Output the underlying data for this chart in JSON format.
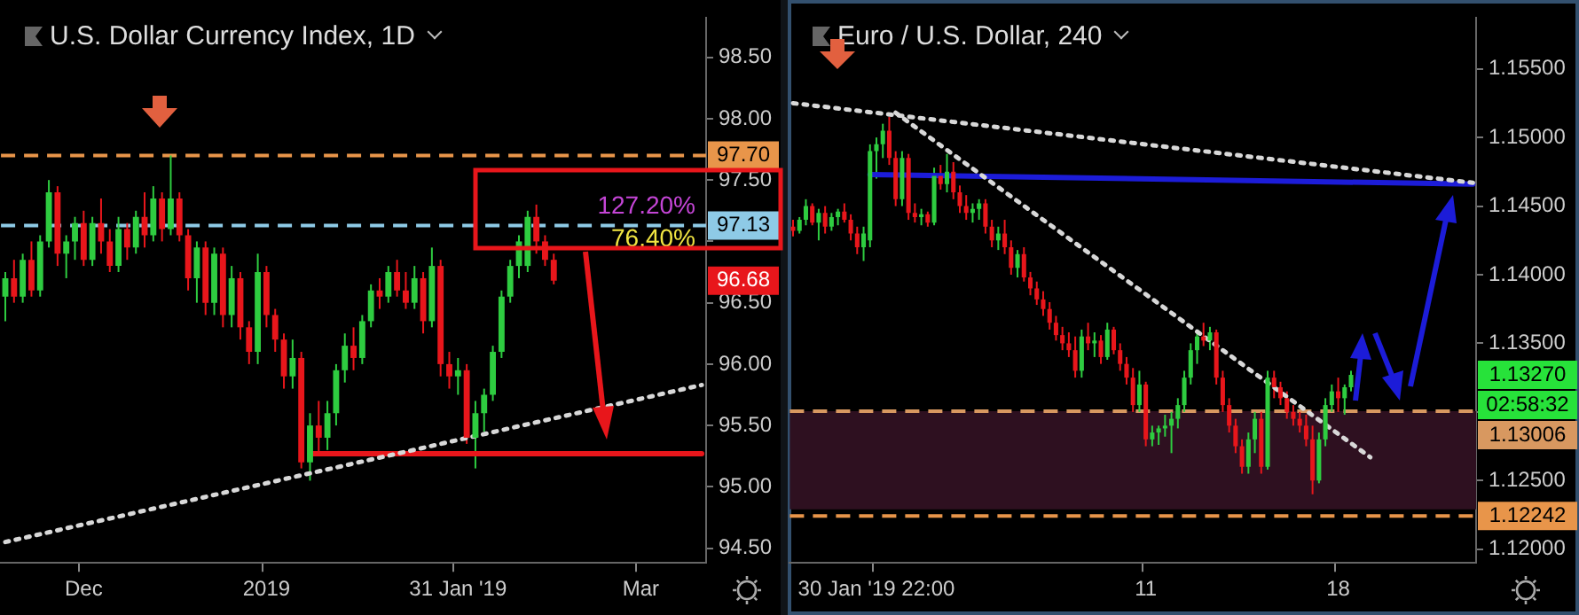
{
  "chart_data": [
    {
      "type": "candlestick",
      "title": "U.S. Dollar Currency Index, 1D",
      "grid": false,
      "legend": false,
      "categories": [
        null,
        null,
        null,
        null,
        null,
        null,
        null,
        null,
        null,
        "Dec",
        null,
        null,
        null,
        null,
        null,
        null,
        null,
        null,
        null,
        null,
        null,
        null,
        null,
        null,
        null,
        null,
        null,
        null,
        null,
        null,
        "2019",
        null,
        null,
        null,
        null,
        null,
        null,
        null,
        null,
        null,
        null,
        null,
        null,
        null,
        null,
        null,
        null,
        null,
        null,
        null,
        null,
        null,
        "31 Jan '19",
        null,
        null,
        null,
        null,
        null,
        null,
        null,
        null,
        null,
        null,
        null,
        null,
        null,
        null,
        null,
        null,
        null,
        null,
        null,
        null,
        "Mar",
        null,
        null,
        null,
        null,
        null,
        null,
        null
      ],
      "ohlc": [
        [
          96.55,
          96.75,
          96.35,
          96.7
        ],
        [
          96.7,
          96.85,
          96.5,
          96.55
        ],
        [
          96.55,
          96.9,
          96.5,
          96.85
        ],
        [
          96.85,
          97.0,
          96.55,
          96.6
        ],
        [
          96.6,
          97.05,
          96.55,
          97.0
        ],
        [
          97.0,
          97.5,
          96.95,
          97.4
        ],
        [
          97.4,
          97.45,
          96.8,
          96.9
        ],
        [
          96.9,
          97.05,
          96.7,
          97.0
        ],
        [
          97.0,
          97.2,
          96.85,
          97.15
        ],
        [
          97.15,
          97.25,
          96.8,
          96.85
        ],
        [
          96.85,
          97.2,
          96.8,
          97.15
        ],
        [
          97.15,
          97.35,
          96.9,
          97.0
        ],
        [
          97.0,
          97.1,
          96.75,
          96.8
        ],
        [
          96.8,
          97.2,
          96.75,
          97.1
        ],
        [
          97.1,
          97.15,
          96.85,
          96.95
        ],
        [
          96.95,
          97.25,
          96.9,
          97.2
        ],
        [
          97.2,
          97.4,
          96.95,
          97.05
        ],
        [
          97.05,
          97.45,
          97.0,
          97.35
        ],
        [
          97.35,
          97.4,
          97.0,
          97.1
        ],
        [
          97.1,
          97.7,
          97.05,
          97.35
        ],
        [
          97.35,
          97.4,
          97.0,
          97.05
        ],
        [
          97.05,
          97.1,
          96.6,
          96.7
        ],
        [
          96.7,
          97.0,
          96.5,
          96.95
        ],
        [
          96.95,
          97.0,
          96.4,
          96.5
        ],
        [
          96.5,
          96.95,
          96.4,
          96.9
        ],
        [
          96.9,
          96.95,
          96.3,
          96.4
        ],
        [
          96.4,
          96.8,
          96.3,
          96.7
        ],
        [
          96.7,
          96.75,
          96.2,
          96.3
        ],
        [
          96.3,
          96.35,
          96.0,
          96.1
        ],
        [
          96.1,
          96.9,
          96.0,
          96.75
        ],
        [
          96.75,
          96.8,
          96.3,
          96.4
        ],
        [
          96.4,
          96.45,
          96.1,
          96.2
        ],
        [
          96.2,
          96.25,
          95.8,
          95.9
        ],
        [
          95.9,
          96.2,
          95.8,
          96.05
        ],
        [
          96.05,
          96.1,
          95.15,
          95.2
        ],
        [
          95.2,
          95.6,
          95.05,
          95.5
        ],
        [
          95.5,
          95.7,
          95.25,
          95.4
        ],
        [
          95.4,
          95.7,
          95.3,
          95.6
        ],
        [
          95.6,
          96.0,
          95.5,
          95.95
        ],
        [
          95.95,
          96.25,
          95.85,
          96.15
        ],
        [
          96.15,
          96.3,
          95.95,
          96.05
        ],
        [
          96.05,
          96.4,
          96.0,
          96.35
        ],
        [
          96.35,
          96.65,
          96.3,
          96.6
        ],
        [
          96.6,
          96.7,
          96.45,
          96.55
        ],
        [
          96.55,
          96.8,
          96.5,
          96.75
        ],
        [
          96.75,
          96.85,
          96.55,
          96.6
        ],
        [
          96.6,
          96.75,
          96.45,
          96.5
        ],
        [
          96.5,
          96.8,
          96.45,
          96.7
        ],
        [
          96.7,
          96.75,
          96.25,
          96.35
        ],
        [
          96.35,
          96.95,
          96.3,
          96.8
        ],
        [
          96.8,
          96.85,
          95.9,
          96.0
        ],
        [
          96.0,
          96.1,
          95.8,
          95.9
        ],
        [
          95.9,
          96.05,
          95.75,
          95.95
        ],
        [
          95.95,
          96.0,
          95.35,
          95.4
        ],
        [
          95.4,
          95.7,
          95.15,
          95.6
        ],
        [
          95.6,
          95.8,
          95.45,
          95.75
        ],
        [
          95.75,
          96.15,
          95.7,
          96.1
        ],
        [
          96.1,
          96.6,
          96.05,
          96.55
        ],
        [
          96.55,
          96.85,
          96.5,
          96.8
        ],
        [
          96.8,
          97.05,
          96.7,
          97.0
        ],
        [
          96.8,
          97.25,
          96.75,
          97.2
        ],
        [
          97.2,
          97.3,
          96.9,
          97.0
        ],
        [
          97.0,
          97.05,
          96.8,
          96.85
        ],
        [
          96.85,
          96.9,
          96.65,
          96.68
        ],
        null,
        null,
        null,
        null,
        null,
        null,
        null,
        null,
        null,
        null,
        null,
        null,
        null,
        null,
        null,
        null,
        null
      ],
      "series": [
        {
          "type": "line",
          "color": "#d8d8d8",
          "line_style": "dotted",
          "values": [
            94.55,
            null,
            null,
            null,
            null,
            null,
            null,
            null,
            null,
            null,
            null,
            null,
            null,
            null,
            null,
            null,
            null,
            null,
            null,
            null,
            null,
            null,
            null,
            null,
            null,
            null,
            null,
            null,
            null,
            null,
            null,
            null,
            null,
            null,
            null,
            null,
            null,
            null,
            null,
            null,
            null,
            null,
            null,
            null,
            null,
            null,
            null,
            null,
            null,
            null,
            null,
            null,
            null,
            null,
            null,
            null,
            null,
            null,
            null,
            null,
            null,
            null,
            null,
            null,
            null,
            null,
            null,
            null,
            null,
            null,
            null,
            null,
            null,
            null,
            null,
            null,
            null,
            null,
            null,
            null,
            95.83
          ]
        },
        {
          "type": "line",
          "color": "#e8161b",
          "line_style": "solid",
          "values": [
            null,
            null,
            null,
            null,
            null,
            null,
            null,
            null,
            null,
            null,
            null,
            null,
            null,
            null,
            null,
            null,
            null,
            null,
            null,
            null,
            null,
            null,
            null,
            null,
            null,
            null,
            null,
            null,
            null,
            null,
            null,
            null,
            null,
            null,
            null,
            95.27,
            null,
            null,
            null,
            null,
            null,
            null,
            null,
            null,
            null,
            null,
            null,
            null,
            null,
            null,
            null,
            null,
            null,
            null,
            null,
            null,
            null,
            null,
            null,
            null,
            null,
            null,
            null,
            null,
            null,
            null,
            null,
            null,
            null,
            null,
            null,
            null,
            null,
            null,
            null,
            null,
            null,
            null,
            null,
            null,
            95.27
          ]
        }
      ],
      "ylim": [
        94.38,
        98.82
      ],
      "yticks": [
        {
          "value": 94.5,
          "label": "94.50"
        },
        {
          "value": 95,
          "label": "95.00"
        },
        {
          "value": 95.5,
          "label": "95.50"
        },
        {
          "value": 96,
          "label": "96.00"
        },
        {
          "value": 96.5,
          "label": "96.50"
        },
        {
          "value": 97,
          "label": null
        },
        {
          "value": 97.5,
          "label": "97.50"
        },
        {
          "value": 98,
          "label": "98.00"
        },
        {
          "value": 98.5,
          "label": "98.50"
        }
      ],
      "ref_lines": [
        {
          "axis": "y",
          "value": 97.7,
          "label": "97.70",
          "color": "#e8954a",
          "line_style": "dashed"
        },
        {
          "axis": "y",
          "value": 97.13,
          "label": "97.13",
          "color": "#8ecae6",
          "line_style": "dashed"
        }
      ],
      "annotations": [
        {
          "text": "127.20%",
          "y": 97.17
        },
        {
          "text": "76.40%",
          "y": 97.13
        },
        {
          "text": "96.68",
          "y": 96.68
        }
      ]
    },
    {
      "type": "candlestick",
      "title": "Euro / U.S. Dollar, 240",
      "grid": false,
      "legend": false,
      "categories": [
        null,
        null,
        null,
        null,
        null,
        null,
        null,
        null,
        null,
        null,
        null,
        null,
        null,
        "30 Jan '19 22:00",
        null,
        null,
        null,
        null,
        null,
        null,
        null,
        null,
        null,
        null,
        null,
        null,
        null,
        null,
        null,
        null,
        null,
        null,
        null,
        null,
        null,
        null,
        null,
        null,
        null,
        null,
        null,
        null,
        null,
        null,
        null,
        null,
        null,
        null,
        null,
        null,
        null,
        null,
        null,
        null,
        null,
        "11",
        null,
        null,
        null,
        null,
        null,
        null,
        null,
        null,
        null,
        null,
        null,
        null,
        null,
        null,
        null,
        null,
        null,
        null,
        null,
        null,
        null,
        null,
        null,
        null,
        null,
        null,
        null,
        null,
        null,
        "18",
        null,
        null,
        null,
        null,
        null,
        null,
        null,
        null,
        null,
        null,
        null,
        null,
        null,
        null,
        null,
        null,
        null,
        null,
        null,
        null,
        null
      ],
      "ohlc": [
        [
          1.1435,
          1.144,
          1.1428,
          1.1432
        ],
        [
          1.1432,
          1.1442,
          1.143,
          1.144
        ],
        [
          1.144,
          1.1455,
          1.1436,
          1.145
        ],
        [
          1.145,
          1.1452,
          1.1436,
          1.1438
        ],
        [
          1.1438,
          1.1448,
          1.1425,
          1.1445
        ],
        [
          1.1445,
          1.145,
          1.143,
          1.1435
        ],
        [
          1.1435,
          1.1445,
          1.1432,
          1.1442
        ],
        [
          1.1442,
          1.1448,
          1.1436,
          1.1446
        ],
        [
          1.1446,
          1.1452,
          1.1438,
          1.144
        ],
        [
          1.144,
          1.1444,
          1.1425,
          1.143
        ],
        [
          1.143,
          1.1435,
          1.1415,
          1.142
        ],
        [
          1.142,
          1.1435,
          1.141,
          1.143
        ],
        [
          1.1425,
          1.1495,
          1.142,
          1.149
        ],
        [
          1.149,
          1.15,
          1.147,
          1.1495
        ],
        [
          1.1495,
          1.151,
          1.1485,
          1.1505
        ],
        [
          1.1505,
          1.1515,
          1.148,
          1.1485
        ],
        [
          1.1485,
          1.149,
          1.145,
          1.1455
        ],
        [
          1.1455,
          1.149,
          1.145,
          1.1485
        ],
        [
          1.1485,
          1.1488,
          1.144,
          1.1445
        ],
        [
          1.1445,
          1.1452,
          1.1438,
          1.1442
        ],
        [
          1.1442,
          1.1448,
          1.1436,
          1.1444
        ],
        [
          1.1444,
          1.1446,
          1.1435,
          1.1438
        ],
        [
          1.1438,
          1.1478,
          1.1436,
          1.1472
        ],
        [
          1.1472,
          1.148,
          1.1462,
          1.1466
        ],
        [
          1.1466,
          1.1488,
          1.146,
          1.1475
        ],
        [
          1.1475,
          1.1482,
          1.1455,
          1.146
        ],
        [
          1.146,
          1.1465,
          1.1445,
          1.145
        ],
        [
          1.145,
          1.1458,
          1.144,
          1.1445
        ],
        [
          1.1445,
          1.1452,
          1.1438,
          1.1448
        ],
        [
          1.1448,
          1.1455,
          1.144,
          1.1452
        ],
        [
          1.1452,
          1.1455,
          1.143,
          1.1435
        ],
        [
          1.1435,
          1.144,
          1.142,
          1.1425
        ],
        [
          1.1425,
          1.1435,
          1.1418,
          1.143
        ],
        [
          1.143,
          1.144,
          1.1415,
          1.142
        ],
        [
          1.142,
          1.1425,
          1.14,
          1.1405
        ],
        [
          1.1405,
          1.1418,
          1.1398,
          1.1415
        ],
        [
          1.1415,
          1.142,
          1.1395,
          1.1398
        ],
        [
          1.1398,
          1.1402,
          1.1385,
          1.139
        ],
        [
          1.139,
          1.1395,
          1.1378,
          1.1382
        ],
        [
          1.1382,
          1.1388,
          1.137,
          1.1375
        ],
        [
          1.1375,
          1.138,
          1.136,
          1.1365
        ],
        [
          1.1365,
          1.137,
          1.1352,
          1.1356
        ],
        [
          1.1356,
          1.1362,
          1.1345,
          1.135
        ],
        [
          1.135,
          1.1358,
          1.134,
          1.1345
        ],
        [
          1.1345,
          1.1355,
          1.1325,
          1.133
        ],
        [
          1.133,
          1.136,
          1.1325,
          1.1355
        ],
        [
          1.1355,
          1.1365,
          1.1345,
          1.135
        ],
        [
          1.135,
          1.1358,
          1.134,
          1.1352
        ],
        [
          1.1352,
          1.1356,
          1.1335,
          1.134
        ],
        [
          1.134,
          1.1365,
          1.1338,
          1.136
        ],
        [
          1.136,
          1.1362,
          1.1342,
          1.1345
        ],
        [
          1.1345,
          1.135,
          1.133,
          1.1335
        ],
        [
          1.1335,
          1.134,
          1.132,
          1.1325
        ],
        [
          1.1325,
          1.1332,
          1.13,
          1.1305
        ],
        [
          1.1305,
          1.133,
          1.13,
          1.132
        ],
        [
          1.132,
          1.1322,
          1.1275,
          1.128
        ],
        [
          1.128,
          1.129,
          1.1275,
          1.1285
        ],
        [
          1.1285,
          1.129,
          1.1276,
          1.1288
        ],
        [
          1.1288,
          1.1298,
          1.1282,
          1.129
        ],
        [
          1.129,
          1.13,
          1.127,
          1.1295
        ],
        [
          1.1295,
          1.131,
          1.1288,
          1.1305
        ],
        [
          1.1305,
          1.133,
          1.13,
          1.1325
        ],
        [
          1.1325,
          1.135,
          1.132,
          1.1345
        ],
        [
          1.1345,
          1.136,
          1.1335,
          1.1355
        ],
        [
          1.1355,
          1.1365,
          1.1348,
          1.1352
        ],
        [
          1.1352,
          1.1362,
          1.1345,
          1.1358
        ],
        [
          1.1358,
          1.136,
          1.132,
          1.1325
        ],
        [
          1.1325,
          1.133,
          1.13,
          1.1305
        ],
        [
          1.1305,
          1.131,
          1.1285,
          1.129
        ],
        [
          1.129,
          1.1295,
          1.127,
          1.1275
        ],
        [
          1.1275,
          1.128,
          1.1255,
          1.126
        ],
        [
          1.126,
          1.1285,
          1.1255,
          1.128
        ],
        [
          1.128,
          1.13,
          1.127,
          1.1295
        ],
        [
          1.1295,
          1.13,
          1.1255,
          1.126
        ],
        [
          1.126,
          1.133,
          1.1258,
          1.1325
        ],
        [
          1.1325,
          1.133,
          1.131,
          1.1318
        ],
        [
          1.1318,
          1.1322,
          1.1305,
          1.131
        ],
        [
          1.131,
          1.1315,
          1.1295,
          1.13
        ],
        [
          1.13,
          1.1305,
          1.129,
          1.1295
        ],
        [
          1.1295,
          1.13,
          1.1285,
          1.129
        ],
        [
          1.129,
          1.1298,
          1.1275,
          1.128
        ],
        [
          1.128,
          1.129,
          1.124,
          1.125
        ],
        [
          1.125,
          1.1285,
          1.1248,
          1.128
        ],
        [
          1.128,
          1.131,
          1.1275,
          1.1305
        ],
        [
          1.1305,
          1.132,
          1.13,
          1.1315
        ],
        [
          1.1315,
          1.1325,
          1.13,
          1.131
        ],
        [
          1.131,
          1.132,
          1.1298,
          1.1318
        ],
        [
          1.1318,
          1.133,
          1.1315,
          1.1327
        ],
        null,
        null,
        null,
        null,
        null,
        null,
        null,
        null,
        null,
        null,
        null,
        null,
        null,
        null,
        null,
        null,
        null,
        null,
        null
      ],
      "series": [
        {
          "type": "line",
          "color": "#d8d8d8",
          "line_style": "dotted",
          "values": [
            1.1525,
            null,
            null,
            null,
            null,
            null,
            null,
            null,
            null,
            null,
            null,
            null,
            null,
            null,
            null,
            null,
            null,
            null,
            null,
            null,
            null,
            null,
            null,
            null,
            null,
            null,
            null,
            null,
            null,
            null,
            null,
            null,
            null,
            null,
            null,
            null,
            null,
            null,
            null,
            null,
            null,
            null,
            null,
            null,
            null,
            null,
            null,
            null,
            null,
            null,
            null,
            null,
            null,
            null,
            null,
            null,
            null,
            null,
            null,
            null,
            null,
            null,
            null,
            null,
            null,
            null,
            null,
            null,
            null,
            null,
            null,
            null,
            null,
            null,
            null,
            null,
            null,
            null,
            null,
            null,
            null,
            null,
            null,
            null,
            null,
            null,
            null,
            null,
            null,
            null,
            null,
            null,
            null,
            null,
            null,
            null,
            null,
            null,
            null,
            null,
            null,
            null,
            null,
            null,
            null,
            null,
            1.1467
          ]
        },
        {
          "type": "line",
          "color": "#d8d8d8",
          "line_style": "dotted",
          "values": [
            null,
            null,
            null,
            null,
            null,
            null,
            null,
            null,
            null,
            null,
            null,
            null,
            null,
            null,
            null,
            null,
            1.1518,
            null,
            null,
            null,
            null,
            null,
            null,
            null,
            null,
            null,
            null,
            null,
            null,
            null,
            null,
            null,
            null,
            null,
            null,
            null,
            null,
            null,
            null,
            null,
            null,
            null,
            null,
            null,
            null,
            null,
            null,
            null,
            null,
            null,
            null,
            null,
            null,
            null,
            null,
            null,
            null,
            null,
            null,
            null,
            null,
            null,
            null,
            null,
            null,
            null,
            null,
            null,
            null,
            null,
            null,
            null,
            null,
            null,
            null,
            null,
            null,
            null,
            null,
            null,
            null,
            null,
            null,
            null,
            null,
            null,
            null,
            null,
            null,
            null,
            1.1267,
            null,
            null,
            null,
            null,
            null,
            null,
            null,
            null,
            null,
            null,
            null,
            null,
            null,
            null,
            null,
            null
          ]
        },
        {
          "type": "line",
          "color": "#1c1cd8",
          "line_style": "solid",
          "values": [
            null,
            null,
            null,
            null,
            null,
            null,
            null,
            null,
            null,
            null,
            null,
            null,
            1.1473,
            null,
            null,
            null,
            null,
            null,
            null,
            null,
            null,
            null,
            null,
            null,
            null,
            null,
            null,
            null,
            null,
            null,
            null,
            null,
            null,
            null,
            null,
            null,
            null,
            null,
            null,
            null,
            null,
            null,
            null,
            null,
            null,
            null,
            null,
            null,
            null,
            null,
            null,
            null,
            null,
            null,
            null,
            null,
            null,
            null,
            null,
            null,
            null,
            null,
            null,
            null,
            null,
            null,
            null,
            null,
            null,
            null,
            null,
            null,
            null,
            null,
            null,
            null,
            null,
            null,
            null,
            null,
            null,
            null,
            null,
            null,
            null,
            null,
            null,
            null,
            null,
            null,
            null,
            null,
            null,
            null,
            null,
            null,
            null,
            null,
            null,
            null,
            null,
            null,
            null,
            null,
            null,
            null,
            1.1466
          ]
        }
      ],
      "ylim": [
        1.119,
        1.1587
      ],
      "yticks": [
        {
          "value": 1.12,
          "label": "1.12000"
        },
        {
          "value": 1.125,
          "label": "1.12500"
        },
        {
          "value": 1.13,
          "label": null
        },
        {
          "value": 1.135,
          "label": "1.13500"
        },
        {
          "value": 1.14,
          "label": "1.14000"
        },
        {
          "value": 1.145,
          "label": "1.14500"
        },
        {
          "value": 1.15,
          "label": "1.15000"
        },
        {
          "value": 1.155,
          "label": "1.15500"
        }
      ],
      "bands": [
        {
          "axis": "y",
          "from": 1.1229,
          "to": 1.13006,
          "color": "#2e1020"
        }
      ],
      "ref_lines": [
        {
          "axis": "y",
          "value": 1.13006,
          "label": "1.13006",
          "color": "#d89860",
          "line_style": "dashed"
        },
        {
          "axis": "y",
          "value": 1.12242,
          "label": "1.12242",
          "color": "#e8954a",
          "line_style": "dashed"
        }
      ],
      "annotations": [
        "1.13270",
        "02:58:32"
      ]
    }
  ]
}
